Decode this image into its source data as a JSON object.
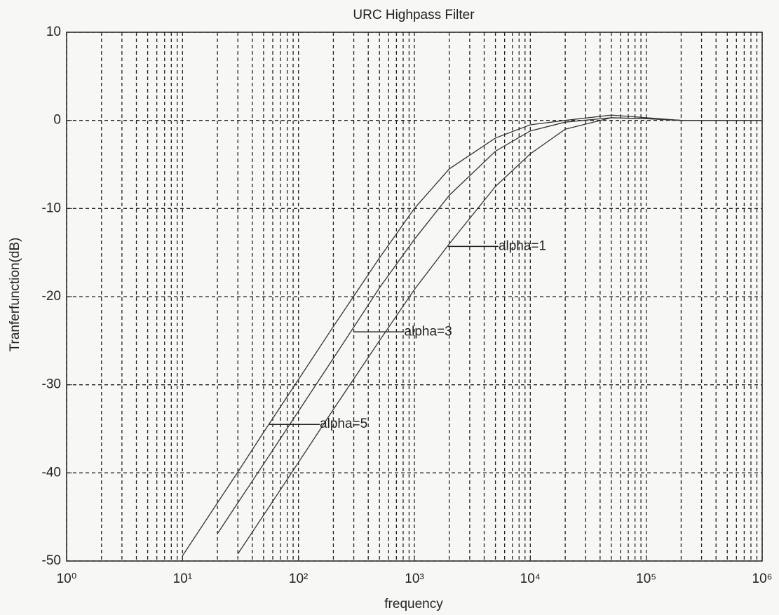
{
  "chart_data": {
    "type": "line",
    "title": "URC Highpass  Filter",
    "x_label": "frequency",
    "y_label": "Tranferfunction(dB)",
    "x_scale": "log",
    "grid": true,
    "minor_grid": true,
    "xlim": [
      1,
      1000000
    ],
    "ylim": [
      -50,
      10
    ],
    "xticks": [
      {
        "value": 1,
        "label": "10⁰"
      },
      {
        "value": 10,
        "label": "10¹"
      },
      {
        "value": 100,
        "label": "10²"
      },
      {
        "value": 1000,
        "label": "10³"
      },
      {
        "value": 10000,
        "label": "10⁴"
      },
      {
        "value": 100000,
        "label": "10⁵"
      },
      {
        "value": 1000000,
        "label": "10⁶"
      }
    ],
    "yticks": [
      -50,
      -40,
      -30,
      -20,
      -10,
      0,
      10
    ],
    "x": [
      10,
      20,
      30,
      50,
      100,
      200,
      500,
      1000,
      2000,
      5000,
      10000,
      20000,
      50000,
      100000,
      200000,
      500000,
      1000000
    ],
    "series": [
      {
        "name": "alpha=5",
        "color": "#333333",
        "values": [
          -49.4,
          -43.4,
          -39.9,
          -35.4,
          -29.4,
          -23.4,
          -15.6,
          -10,
          -5.5,
          -2,
          -0.5,
          0,
          0.6,
          0.3,
          0,
          0,
          0
        ]
      },
      {
        "name": "alpha=3",
        "color": "#333333",
        "values": [
          null,
          -46.9,
          -43.4,
          -39,
          -33,
          -27,
          -19,
          -13.5,
          -8.5,
          -3.5,
          -1.2,
          -0.2,
          0.3,
          0.2,
          0,
          0,
          0
        ]
      },
      {
        "name": "alpha=1",
        "color": "#333333",
        "values": [
          null,
          null,
          -49.2,
          -44.8,
          -38.8,
          -32.8,
          -25,
          -19.2,
          -14,
          -7.5,
          -3.8,
          -1,
          0.3,
          0.2,
          0,
          0,
          0
        ]
      }
    ],
    "annotations": [
      {
        "text": "alpha=1",
        "x": 1950,
        "y": -14.3
      },
      {
        "text": "alpha=3",
        "x": 300,
        "y": -24
      },
      {
        "text": "alpha=5",
        "x": 56,
        "y": -34.5
      }
    ]
  }
}
